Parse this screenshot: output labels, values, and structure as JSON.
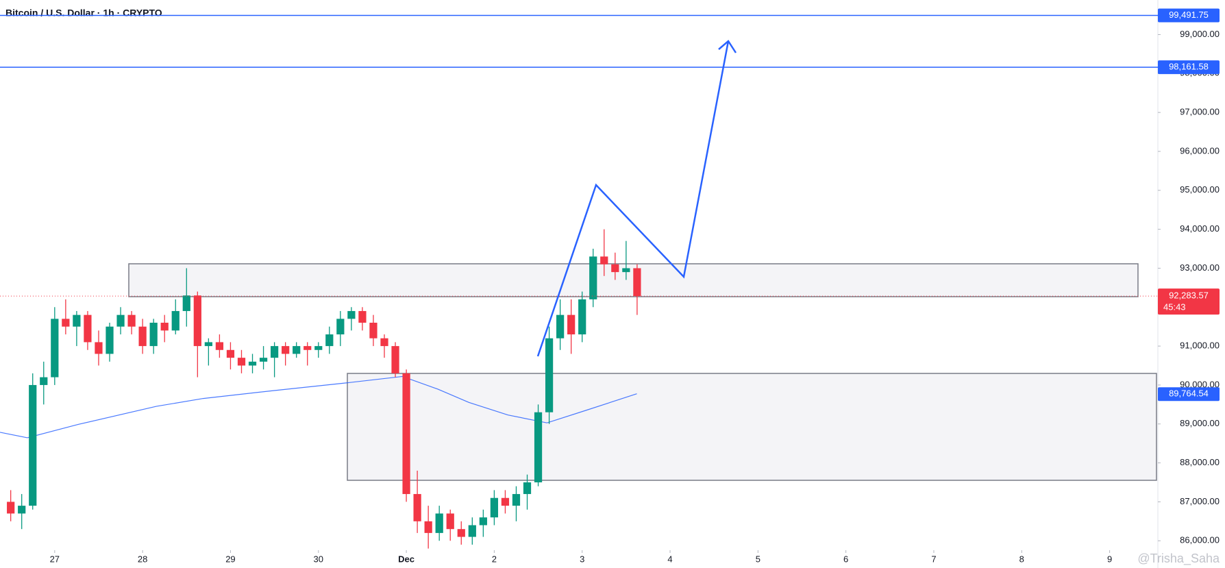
{
  "chart_data": {
    "type": "candlestick",
    "title": "Bitcoin / U.S. Dollar · 1h · CRYPTO",
    "watermark": "@Trisha_Saha",
    "x": [
      26.5,
      26.625,
      26.75,
      26.875,
      27,
      27.125,
      27.25,
      27.375,
      27.5,
      27.625,
      27.75,
      27.875,
      28,
      28.125,
      28.25,
      28.375,
      28.5,
      28.625,
      28.75,
      28.875,
      29,
      29.125,
      29.25,
      29.375,
      29.5,
      29.625,
      29.75,
      29.875,
      30,
      30.125,
      30.25,
      30.375,
      30.5,
      30.625,
      30.75,
      30.875,
      31,
      31.125,
      31.25,
      31.375,
      31.5,
      31.625,
      31.75,
      31.875,
      32,
      32.125,
      32.25,
      32.375,
      32.5,
      32.625,
      32.75,
      32.875,
      33,
      33.125,
      33.25,
      33.375,
      33.5,
      33.625
    ],
    "open": [
      87000,
      86700,
      86900,
      90000,
      90200,
      91700,
      91500,
      91800,
      91100,
      90800,
      91500,
      91800,
      91500,
      91000,
      91600,
      91400,
      91900,
      92300,
      91000,
      91100,
      90900,
      90700,
      90500,
      90600,
      90700,
      91000,
      90800,
      91000,
      90900,
      91000,
      91300,
      91700,
      91900,
      91600,
      91200,
      91000,
      90300,
      87200,
      86500,
      86200,
      86700,
      86300,
      86100,
      86400,
      86600,
      87100,
      86900,
      87200,
      87500,
      89300,
      91200,
      91800,
      91300,
      92200,
      93300,
      93100,
      92900,
      93000
    ],
    "high": [
      87300,
      87200,
      90300,
      90600,
      92000,
      92200,
      91900,
      91900,
      91400,
      91600,
      92000,
      91900,
      91700,
      91700,
      91800,
      92200,
      93000,
      92400,
      91200,
      91300,
      91100,
      90900,
      90800,
      91000,
      91100,
      91100,
      91100,
      91100,
      91100,
      91500,
      91900,
      92000,
      92000,
      91800,
      91300,
      91100,
      90400,
      87800,
      86900,
      86900,
      86800,
      86500,
      86600,
      86800,
      87300,
      87300,
      87400,
      87700,
      89500,
      91500,
      92200,
      92200,
      92400,
      93500,
      94000,
      93400,
      93700,
      93100
    ],
    "low": [
      86500,
      86300,
      86800,
      89500,
      90000,
      91300,
      91000,
      90900,
      90500,
      90600,
      91300,
      91300,
      90800,
      90800,
      91100,
      91300,
      91500,
      90200,
      90500,
      90700,
      90400,
      90300,
      90300,
      90400,
      90200,
      90500,
      90700,
      90500,
      90700,
      90800,
      91000,
      91400,
      91400,
      91000,
      90700,
      90200,
      87000,
      86200,
      85800,
      86000,
      86000,
      85900,
      85900,
      86100,
      86400,
      86700,
      86500,
      86800,
      87400,
      89000,
      90900,
      90800,
      91100,
      92000,
      92800,
      92700,
      92700,
      91800
    ],
    "close": [
      86700,
      86900,
      90000,
      90200,
      91700,
      91500,
      91800,
      91100,
      90800,
      91500,
      91800,
      91500,
      91000,
      91600,
      91400,
      91900,
      92300,
      91000,
      91100,
      90900,
      90700,
      90500,
      90600,
      90700,
      91000,
      90800,
      91000,
      90900,
      91000,
      91300,
      91700,
      91900,
      91600,
      91200,
      91000,
      90300,
      87200,
      86500,
      86200,
      86700,
      86300,
      86100,
      86400,
      86600,
      87100,
      86900,
      87200,
      87500,
      89300,
      91200,
      91800,
      91300,
      92200,
      93300,
      93100,
      92900,
      93000,
      92283.57
    ],
    "up_color": "#089981",
    "down_color": "#f23645",
    "moving_average": {
      "color": "#2962ff",
      "x": [
        26.378,
        26.689,
        27.267,
        28.156,
        28.689,
        29.489,
        30.333,
        30.956,
        31.356,
        31.711,
        32.156,
        32.6,
        33.044,
        33.622
      ],
      "values": [
        88786,
        88645,
        88988,
        89452,
        89654,
        89856,
        90058,
        90220,
        89896,
        89553,
        89230,
        89028,
        89350,
        89775
      ],
      "last": {
        "value": 89764.54,
        "label": "89,764.54"
      }
    },
    "levels": [
      {
        "value": 99491.75,
        "label": "99,491.75"
      },
      {
        "value": 98161.58,
        "label": "98,161.58"
      }
    ],
    "level_color": "#2962ff",
    "last_price": {
      "value": 92283.57,
      "label": "92,283.57"
    },
    "countdown": "45:43",
    "xlim": [
      26.378,
      39.533
    ],
    "xticks": [
      27,
      28,
      29,
      30,
      {
        "value": 31,
        "label": "Dec"
      },
      {
        "value": 32,
        "label": "2"
      },
      {
        "value": 33,
        "label": "3"
      },
      {
        "value": 34,
        "label": "4"
      },
      {
        "value": 35,
        "label": "5"
      },
      {
        "value": 36,
        "label": "6"
      },
      {
        "value": 37,
        "label": "7"
      },
      {
        "value": 38,
        "label": "8"
      },
      {
        "value": 39,
        "label": "9"
      }
    ],
    "ylim": [
      85758,
      99888
    ],
    "yticks": [
      {
        "value": 86000,
        "label": "86,000.00"
      },
      {
        "value": 87000,
        "label": "87,000.00"
      },
      {
        "value": 88000,
        "label": "88,000.00"
      },
      {
        "value": 89000,
        "label": "89,000.00"
      },
      {
        "value": 90000,
        "label": "90,000.00"
      },
      {
        "value": 91000,
        "label": "91,000.00"
      },
      {
        "value": 92000,
        "label": "92,000.00"
      },
      {
        "value": 93000,
        "label": "93,000.00"
      },
      {
        "value": 94000,
        "label": "94,000.00"
      },
      {
        "value": 95000,
        "label": "95,000.00"
      },
      {
        "value": 96000,
        "label": "96,000.00"
      },
      {
        "value": 97000,
        "label": "97,000.00"
      },
      {
        "value": 98000,
        "label": "98,000.00"
      },
      {
        "value": 99000,
        "label": "99,000.00"
      }
    ],
    "grid": false
  }
}
